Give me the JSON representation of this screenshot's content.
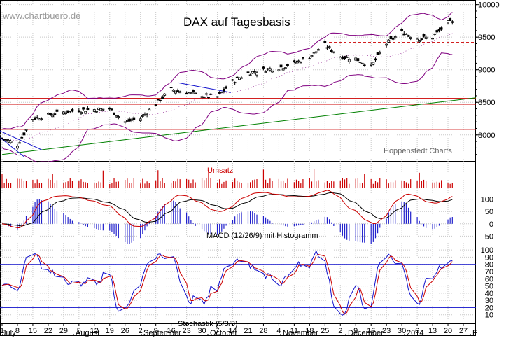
{
  "watermark": "www.chartbuero.de",
  "title": "DAX auf Tagesbasis",
  "source_label": "Hoppenstedt Charts",
  "colors": {
    "candle_up": "#ffffff",
    "candle_down": "#000000",
    "bollinger": "#800080",
    "support_red": "#cc0000",
    "trend_green": "#008000",
    "downtrend_blue": "#1010cc",
    "volume": "#cc0000",
    "macd_signal": "#000000",
    "macd_line": "#cc0000",
    "histogram": "#2020cc",
    "stoch_k": "#1010cc",
    "stoch_d": "#cc0000",
    "grid": "#c8c8c8"
  },
  "chart_data": {
    "type": "candlestick",
    "title": "DAX auf Tagesbasis",
    "x": {
      "tick_labels": [
        "1",
        "8",
        "15",
        "22",
        "29",
        "5",
        "12",
        "19",
        "26",
        "2",
        "9",
        "16",
        "23",
        "30",
        "7",
        "14",
        "21",
        "28",
        "4",
        "11",
        "18",
        "25",
        "2",
        "9",
        "16",
        "23",
        "30",
        "6",
        "13",
        "20",
        "27"
      ],
      "month_labels": [
        "July",
        "August",
        "September",
        "October",
        "November",
        "December",
        "2014",
        "F"
      ],
      "dates_start": "2013-07-01",
      "dates_end": "2014-01-27"
    },
    "price_panel": {
      "yticks": [
        8000,
        8500,
        9000,
        9500,
        10000
      ],
      "ylim": [
        7600,
        10050
      ],
      "horizontal_lines": [
        {
          "level": 8560,
          "color": "red"
        },
        {
          "level": 8470,
          "color": "red"
        },
        {
          "level": 8085,
          "color": "red"
        },
        {
          "level": 9420,
          "style": "dashed",
          "color": "red"
        }
      ],
      "trendline": {
        "from": [
          "2013-07-01",
          7700
        ],
        "to": [
          "2014-01-27",
          8550
        ],
        "color": "green"
      },
      "close_approx": [
        [
          "2013-07-01",
          7950
        ],
        [
          "2013-07-08",
          7850
        ],
        [
          "2013-07-15",
          8250
        ],
        [
          "2013-07-22",
          8300
        ],
        [
          "2013-07-29",
          8350
        ],
        [
          "2013-08-05",
          8380
        ],
        [
          "2013-08-12",
          8390
        ],
        [
          "2013-08-19",
          8400
        ],
        [
          "2013-08-26",
          8200
        ],
        [
          "2013-09-02",
          8250
        ],
        [
          "2013-09-09",
          8480
        ],
        [
          "2013-09-16",
          8700
        ],
        [
          "2013-09-23",
          8650
        ],
        [
          "2013-09-30",
          8600
        ],
        [
          "2013-10-07",
          8580
        ],
        [
          "2013-10-14",
          8820
        ],
        [
          "2013-10-21",
          8950
        ],
        [
          "2013-10-28",
          9000
        ],
        [
          "2013-11-04",
          9030
        ],
        [
          "2013-11-11",
          9100
        ],
        [
          "2013-11-18",
          9200
        ],
        [
          "2013-11-25",
          9380
        ],
        [
          "2013-12-02",
          9200
        ],
        [
          "2013-12-09",
          9170
        ],
        [
          "2013-12-16",
          9050
        ],
        [
          "2013-12-23",
          9400
        ],
        [
          "2013-12-30",
          9580
        ],
        [
          "2014-01-06",
          9480
        ],
        [
          "2014-01-13",
          9500
        ],
        [
          "2014-01-20",
          9720
        ]
      ]
    },
    "volume_panel": {
      "label": "Umsatz"
    },
    "macd_panel": {
      "label": "MACD (12/26/9) mit Histogramm",
      "yticks": [
        100,
        50,
        0,
        -50
      ],
      "ylim": [
        -80,
        130
      ]
    },
    "stochastic_panel": {
      "label": "Stochastik (5/3/3)",
      "yticks": [
        100,
        90,
        80,
        70,
        60,
        50,
        40,
        30,
        20,
        10
      ],
      "ylim": [
        0,
        105
      ],
      "reference_lines": [
        80,
        20
      ]
    }
  }
}
